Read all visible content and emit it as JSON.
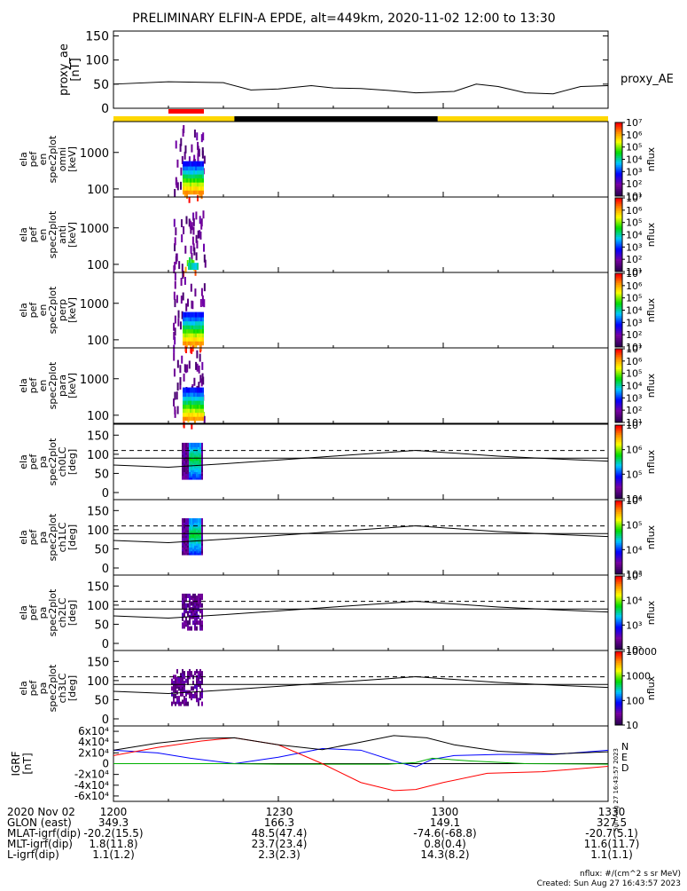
{
  "title": "PRELIMINARY ELFIN-A EPDE, alt=449km, 2020-11-02 12:00 to 13:30",
  "proxy_ae": {
    "ylabel": "proxy_ae\n[nT]",
    "side_label": "proxy_AE",
    "yticks": [
      "0",
      "50",
      "100",
      "150"
    ]
  },
  "status_bar": {
    "colors": {
      "yellow": "#ffd700",
      "black": "#000000",
      "red": "#ff0000"
    }
  },
  "spec_panels": [
    {
      "ylabel": [
        "ela",
        "pef",
        "en",
        "spec2plot",
        "omni",
        "[keV]"
      ],
      "yticks": [
        "100",
        "1000"
      ],
      "cbar_min_exp": 1,
      "cbar_max_exp": 7,
      "cbar_label": "nflux"
    },
    {
      "ylabel": [
        "ela",
        "pef",
        "en",
        "spec2plot",
        "anti",
        "[keV]"
      ],
      "yticks": [
        "100",
        "1000"
      ],
      "cbar_min_exp": 1,
      "cbar_max_exp": 7,
      "cbar_label": "nflux"
    },
    {
      "ylabel": [
        "ela",
        "pef",
        "en",
        "spec2plot",
        "perp",
        "[keV]"
      ],
      "yticks": [
        "100",
        "1000"
      ],
      "cbar_min_exp": 1,
      "cbar_max_exp": 7,
      "cbar_label": "nflux"
    },
    {
      "ylabel": [
        "ela",
        "pef",
        "en",
        "spec2plot",
        "para",
        "[keV]"
      ],
      "yticks": [
        "100",
        "1000"
      ],
      "cbar_min_exp": 1,
      "cbar_max_exp": 7,
      "cbar_label": "nflux"
    }
  ],
  "pa_panels": [
    {
      "ylabel": [
        "ela",
        "pef",
        "pa",
        "spec2plot",
        "ch0LC",
        "[deg]"
      ],
      "yticks": [
        "0",
        "50",
        "100",
        "150"
      ],
      "cbar_min_exp": 4,
      "cbar_max_exp": 7,
      "cbar_label": "nflux"
    },
    {
      "ylabel": [
        "ela",
        "pef",
        "pa",
        "spec2plot",
        "ch1LC",
        "[deg]"
      ],
      "yticks": [
        "0",
        "50",
        "100",
        "150"
      ],
      "cbar_min_exp": 3,
      "cbar_max_exp": 6,
      "cbar_label": "nflux"
    },
    {
      "ylabel": [
        "ela",
        "pef",
        "pa",
        "spec2plot",
        "ch2LC",
        "[deg]"
      ],
      "yticks": [
        "0",
        "50",
        "100",
        "150"
      ],
      "cbar_min_exp": 2,
      "cbar_max_exp": 5,
      "cbar_label": "nflux"
    },
    {
      "ylabel": [
        "ela",
        "pef",
        "pa",
        "spec2plot",
        "ch3LC",
        "[deg]"
      ],
      "yticks": [
        "0",
        "50",
        "100",
        "150"
      ],
      "cbar_ticks": [
        "10",
        "100",
        "1000",
        "10000"
      ],
      "cbar_label": "nflux"
    }
  ],
  "igrf": {
    "ylabel": "IGRF\n[nT]",
    "yticks": [
      "-6x10⁴",
      "-4x10⁴",
      "-2x10⁴",
      "0",
      "2x10⁴",
      "4x10⁴",
      "6x10⁴"
    ],
    "legend": [
      {
        "label": "N",
        "color": "#0000ff"
      },
      {
        "label": "E",
        "color": "#00b000"
      },
      {
        "label": "D",
        "color": "#ff0000"
      }
    ],
    "stamp": "Sun Aug 27 16:43:57 2023"
  },
  "chart_data": [
    {
      "type": "line",
      "panel": "proxy_ae",
      "x_minutes": [
        0,
        10,
        20,
        25,
        30,
        36,
        40,
        45,
        50,
        55,
        58,
        62,
        66,
        70,
        75,
        80,
        85,
        90
      ],
      "values": [
        50,
        55,
        53,
        38,
        40,
        47,
        42,
        41,
        37,
        32,
        33,
        35,
        50,
        45,
        32,
        30,
        45,
        47
      ],
      "ylim": [
        0,
        150
      ],
      "xlim_minutes": [
        0,
        90
      ]
    },
    {
      "type": "line",
      "panel": "igrf",
      "series": [
        {
          "name": "N",
          "color": "#0000ff",
          "x_minutes": [
            0,
            8,
            14,
            22,
            30,
            38,
            45,
            52,
            55,
            58,
            62,
            70,
            80,
            90
          ],
          "values": [
            25000,
            20000,
            10000,
            0,
            12000,
            28000,
            25000,
            2000,
            -6000,
            8000,
            15000,
            17000,
            17000,
            25000
          ]
        },
        {
          "name": "E",
          "color": "#00b000",
          "x_minutes": [
            0,
            10,
            20,
            30,
            40,
            50,
            55,
            58,
            65,
            75,
            90
          ],
          "values": [
            0,
            0,
            0,
            -1000,
            -1000,
            -1000,
            2000,
            10000,
            5000,
            0,
            -1000
          ]
        },
        {
          "name": "D",
          "color": "#ff0000",
          "x_minutes": [
            0,
            8,
            16,
            22,
            30,
            38,
            45,
            51,
            55,
            60,
            68,
            78,
            90
          ],
          "values": [
            15000,
            30000,
            42000,
            48000,
            35000,
            0,
            -35000,
            -50000,
            -48000,
            -35000,
            -18000,
            -15000,
            -5000
          ]
        },
        {
          "name": "total",
          "color": "#000000",
          "x_minutes": [
            0,
            8,
            16,
            22,
            30,
            38,
            45,
            51,
            57,
            62,
            70,
            80,
            90
          ],
          "values": [
            25000,
            38000,
            47000,
            48000,
            35000,
            26000,
            40000,
            52000,
            48000,
            35000,
            23000,
            18000,
            22000
          ]
        }
      ],
      "ylim": [
        -60000,
        60000
      ]
    },
    {
      "type": "line",
      "panel": "pa_loss_cone",
      "x_minutes": [
        0,
        10,
        20,
        30,
        40,
        50,
        55,
        60,
        70,
        80,
        90
      ],
      "loss_cone": [
        72,
        66,
        75,
        85,
        95,
        105,
        110,
        105,
        95,
        88,
        82
      ],
      "anti_loss_cone": 110,
      "ylim": [
        0,
        180
      ]
    }
  ],
  "x_axis": {
    "tick_labels": [
      "1200",
      "1230",
      "1300",
      "1330"
    ],
    "rows": [
      {
        "label": "2020 Nov 02",
        "values": [
          "1200",
          "1230",
          "1300",
          "1330"
        ]
      },
      {
        "label": "GLON (east)",
        "values": [
          "349.3",
          "166.3",
          "149.1",
          "327.5"
        ]
      },
      {
        "label": "MLAT-igrf(dip)",
        "values": [
          "-20.2(15.5)",
          "48.5(47.4)",
          "-74.6(-68.8)",
          "-20.7(5.1)"
        ]
      },
      {
        "label": "MLT-igrf(dip)",
        "values": [
          "1.8(11.8)",
          "23.7(23.4)",
          "0.8(0.4)",
          "11.6(11.7)"
        ]
      },
      {
        "label": "L-igrf(dip)",
        "values": [
          "1.1(1.2)",
          "2.3(2.3)",
          "14.3(8.2)",
          "1.1(1.1)"
        ]
      }
    ]
  },
  "footer": {
    "units": "nflux: #/(cm^2 s sr MeV)",
    "created": "Created: Sun Aug 27 16:43:57 2023"
  }
}
